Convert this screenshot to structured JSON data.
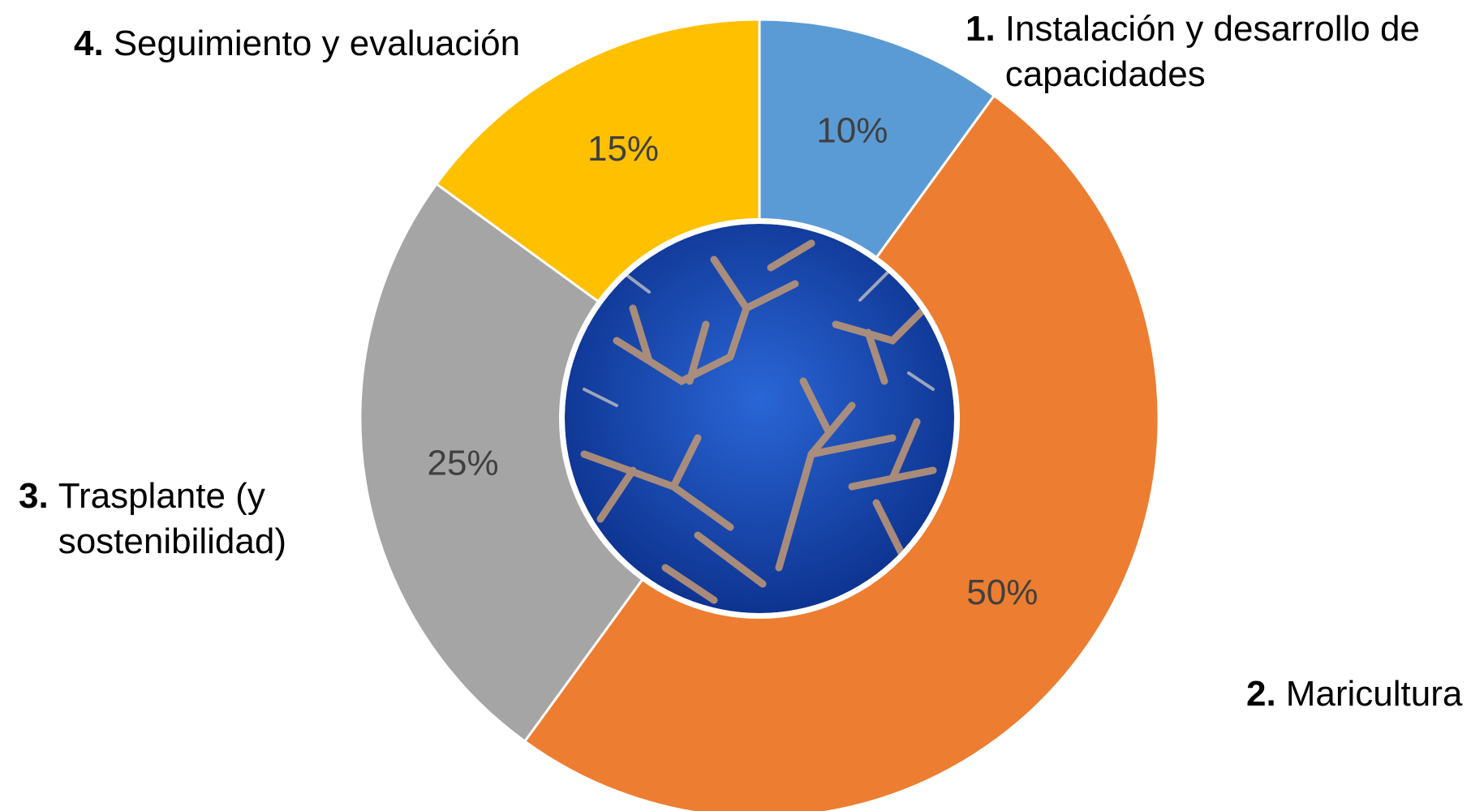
{
  "chart_data": {
    "type": "donut",
    "category_numbers": [
      "1.",
      "2.",
      "3.",
      "4."
    ],
    "categories": [
      "Instalación y desarrollo de capacidades",
      "Maricultura",
      "Trasplante (y sostenibilidad)",
      "Seguimiento y evaluación"
    ],
    "values": [
      10,
      50,
      25,
      15
    ],
    "value_labels": [
      "10%",
      "50%",
      "25%",
      "15%"
    ],
    "colors": [
      "#5b9bd5",
      "#ed7d31",
      "#a5a5a5",
      "#ffc000"
    ]
  }
}
